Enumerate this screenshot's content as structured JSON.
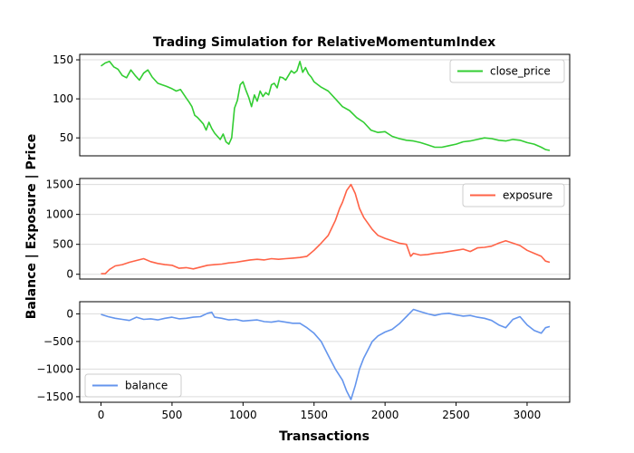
{
  "chart_data": {
    "type": "line",
    "title": "Trading Simulation for RelativeMomentumIndex",
    "xlabel": "Transactions",
    "ylabel": "Balance | Exposure | Price",
    "xlim": [
      -150,
      3300
    ],
    "xticks": [
      0,
      500,
      1000,
      1500,
      2000,
      2500,
      3000
    ],
    "grid": "horizontal",
    "panels": [
      {
        "name": "close_price",
        "color": "#32cd32",
        "legend_position": "top-right",
        "ylim": [
          27,
          157
        ],
        "yticks": [
          50,
          100,
          150
        ],
        "x": [
          0,
          30,
          60,
          90,
          120,
          150,
          180,
          210,
          240,
          270,
          300,
          330,
          360,
          400,
          430,
          460,
          500,
          530,
          560,
          600,
          620,
          640,
          660,
          680,
          700,
          720,
          740,
          760,
          780,
          800,
          820,
          840,
          860,
          880,
          900,
          920,
          940,
          960,
          980,
          1000,
          1020,
          1040,
          1060,
          1080,
          1100,
          1120,
          1140,
          1160,
          1180,
          1200,
          1220,
          1240,
          1260,
          1280,
          1300,
          1320,
          1340,
          1360,
          1380,
          1400,
          1420,
          1440,
          1460,
          1480,
          1500,
          1550,
          1600,
          1650,
          1700,
          1750,
          1800,
          1850,
          1900,
          1950,
          2000,
          2050,
          2100,
          2150,
          2200,
          2250,
          2300,
          2350,
          2400,
          2450,
          2500,
          2550,
          2600,
          2650,
          2700,
          2750,
          2800,
          2850,
          2900,
          2950,
          3000,
          3050,
          3100,
          3130,
          3160
        ],
        "y": [
          142,
          146,
          148,
          141,
          138,
          130,
          127,
          137,
          130,
          124,
          133,
          137,
          128,
          120,
          118,
          116,
          113,
          110,
          112,
          101,
          96,
          90,
          79,
          76,
          72,
          68,
          60,
          70,
          62,
          56,
          52,
          48,
          55,
          45,
          42,
          50,
          88,
          98,
          118,
          122,
          111,
          102,
          90,
          105,
          97,
          110,
          103,
          108,
          105,
          118,
          120,
          114,
          128,
          127,
          124,
          130,
          136,
          133,
          136,
          148,
          134,
          140,
          132,
          128,
          122,
          115,
          110,
          100,
          90,
          85,
          76,
          70,
          60,
          57,
          58,
          52,
          49,
          47,
          46,
          44,
          41,
          38,
          38,
          40,
          42,
          45,
          46,
          48,
          50,
          49,
          47,
          46,
          48,
          47,
          44,
          42,
          38,
          35,
          34
        ]
      },
      {
        "name": "exposure",
        "color": "#ff6347",
        "legend_position": "top-right",
        "ylim": [
          -80,
          1600
        ],
        "yticks": [
          0,
          500,
          1000,
          1500
        ],
        "x": [
          0,
          30,
          60,
          100,
          150,
          200,
          250,
          300,
          350,
          400,
          450,
          500,
          550,
          600,
          650,
          700,
          750,
          800,
          850,
          900,
          950,
          1000,
          1050,
          1100,
          1150,
          1200,
          1250,
          1300,
          1350,
          1400,
          1450,
          1500,
          1550,
          1600,
          1650,
          1680,
          1700,
          1730,
          1760,
          1790,
          1820,
          1850,
          1880,
          1910,
          1950,
          2000,
          2050,
          2100,
          2150,
          2180,
          2200,
          2250,
          2300,
          2350,
          2400,
          2450,
          2500,
          2550,
          2600,
          2650,
          2700,
          2750,
          2800,
          2850,
          2900,
          2950,
          3000,
          3050,
          3100,
          3130,
          3160
        ],
        "y": [
          10,
          10,
          80,
          140,
          160,
          200,
          230,
          260,
          210,
          180,
          160,
          150,
          100,
          110,
          90,
          120,
          150,
          160,
          170,
          190,
          200,
          220,
          240,
          250,
          240,
          260,
          250,
          260,
          270,
          280,
          300,
          400,
          520,
          650,
          900,
          1100,
          1200,
          1400,
          1500,
          1350,
          1100,
          950,
          850,
          750,
          650,
          600,
          560,
          520,
          500,
          300,
          350,
          320,
          330,
          350,
          360,
          380,
          400,
          420,
          380,
          440,
          450,
          470,
          520,
          560,
          520,
          480,
          400,
          350,
          300,
          220,
          200
        ]
      },
      {
        "name": "balance",
        "color": "#6495ed",
        "legend_position": "bottom-left",
        "ylim": [
          -1600,
          220
        ],
        "yticks": [
          -1500,
          -1000,
          -500,
          0
        ],
        "x": [
          0,
          50,
          100,
          150,
          200,
          250,
          300,
          350,
          400,
          450,
          500,
          550,
          600,
          650,
          700,
          750,
          780,
          800,
          850,
          900,
          950,
          1000,
          1050,
          1100,
          1150,
          1200,
          1250,
          1300,
          1350,
          1400,
          1450,
          1500,
          1550,
          1600,
          1650,
          1700,
          1730,
          1760,
          1790,
          1820,
          1850,
          1880,
          1910,
          1950,
          2000,
          2050,
          2100,
          2150,
          2200,
          2250,
          2300,
          2350,
          2400,
          2450,
          2500,
          2550,
          2600,
          2650,
          2700,
          2750,
          2800,
          2850,
          2900,
          2950,
          3000,
          3050,
          3100,
          3130,
          3160
        ],
        "y": [
          -10,
          -50,
          -80,
          -100,
          -120,
          -60,
          -100,
          -90,
          -110,
          -80,
          -60,
          -90,
          -80,
          -60,
          -50,
          10,
          30,
          -60,
          -80,
          -110,
          -100,
          -130,
          -120,
          -110,
          -140,
          -150,
          -130,
          -150,
          -170,
          -170,
          -250,
          -350,
          -500,
          -750,
          -1000,
          -1200,
          -1400,
          -1550,
          -1300,
          -1000,
          -800,
          -650,
          -500,
          -400,
          -330,
          -280,
          -180,
          -50,
          80,
          40,
          0,
          -30,
          0,
          10,
          -20,
          -40,
          -30,
          -60,
          -80,
          -120,
          -200,
          -250,
          -100,
          -50,
          -200,
          -300,
          -350,
          -250,
          -230
        ]
      }
    ]
  }
}
